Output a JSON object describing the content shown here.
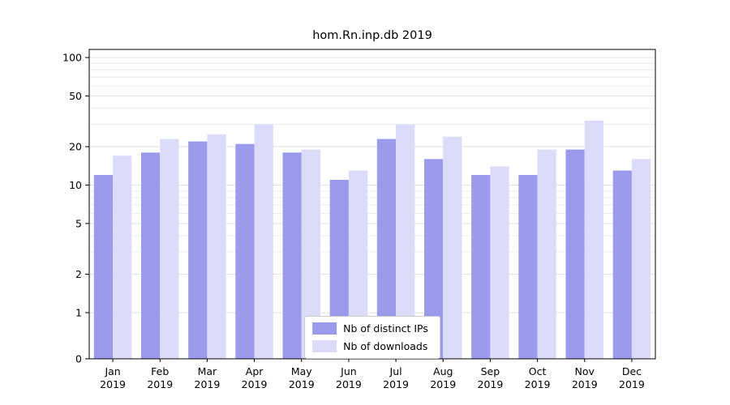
{
  "chart_data": {
    "type": "bar",
    "title": "hom.Rn.inp.db 2019",
    "categories": [
      "Jan",
      "Feb",
      "Mar",
      "Apr",
      "May",
      "Jun",
      "Jul",
      "Aug",
      "Sep",
      "Oct",
      "Nov",
      "Dec"
    ],
    "x_tick_year": "2019",
    "series": [
      {
        "name": "Nb of distinct IPs",
        "color": "#9b9bee",
        "values": [
          12,
          18,
          22,
          21,
          18,
          11,
          23,
          16,
          12,
          12,
          19,
          13
        ]
      },
      {
        "name": "Nb of downloads",
        "color": "#dcdcfa",
        "values": [
          17,
          23,
          25,
          30,
          19,
          13,
          30,
          24,
          14,
          19,
          32,
          16
        ]
      }
    ],
    "y_axis": {
      "scale": "symlog",
      "ticks": [
        0,
        1,
        2,
        5,
        10,
        20,
        50,
        100
      ],
      "minor_ticks": [
        3,
        4,
        6,
        7,
        8,
        9,
        30,
        40,
        60,
        70,
        80,
        90
      ],
      "ylim": [
        0,
        115
      ]
    },
    "grid": true,
    "legend_position": "bottom-center"
  }
}
